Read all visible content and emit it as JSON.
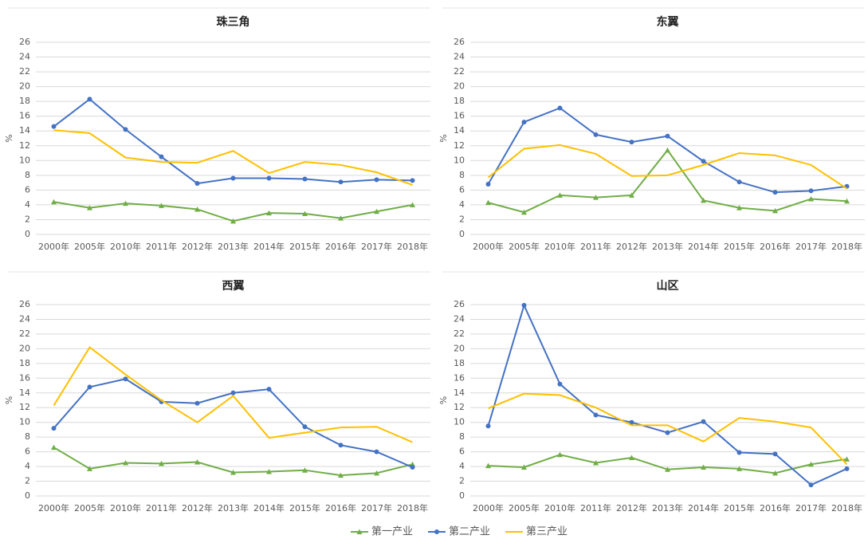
{
  "chart_data": [
    {
      "type": "line",
      "title": "珠三角",
      "ylabel": "%",
      "categories": [
        "2000年",
        "2005年",
        "2010年",
        "2011年",
        "2012年",
        "2013年",
        "2014年",
        "2015年",
        "2016年",
        "2017年",
        "2018年"
      ],
      "ylim": [
        0,
        26
      ],
      "yticks": [
        0,
        2,
        4,
        6,
        8,
        10,
        12,
        14,
        16,
        18,
        20,
        22,
        24,
        26
      ],
      "grid": true,
      "series": [
        {
          "name": "第一产业",
          "color": "#70ad47",
          "marker": "triangle",
          "values": [
            4.4,
            3.6,
            4.2,
            3.9,
            3.4,
            1.8,
            2.9,
            2.8,
            2.2,
            3.1,
            4.0
          ]
        },
        {
          "name": "第二产业",
          "color": "#4472c4",
          "marker": "circle",
          "values": [
            14.6,
            18.3,
            14.2,
            10.5,
            6.9,
            7.6,
            7.6,
            7.5,
            7.1,
            7.4,
            7.3
          ]
        },
        {
          "name": "第三产业",
          "color": "#ffc000",
          "marker": "none",
          "values": [
            14.1,
            13.7,
            10.4,
            9.8,
            9.7,
            11.3,
            8.3,
            9.8,
            9.4,
            8.4,
            6.7
          ]
        }
      ]
    },
    {
      "type": "line",
      "title": "东翼",
      "ylabel": "%",
      "categories": [
        "2000年",
        "2005年",
        "2010年",
        "2011年",
        "2012年",
        "2013年",
        "2014年",
        "2015年",
        "2016年",
        "2017年",
        "2018年"
      ],
      "ylim": [
        0,
        26
      ],
      "yticks": [
        0,
        2,
        4,
        6,
        8,
        10,
        12,
        14,
        16,
        18,
        20,
        22,
        24,
        26
      ],
      "grid": true,
      "series": [
        {
          "name": "第一产业",
          "color": "#70ad47",
          "marker": "triangle",
          "values": [
            4.3,
            3.0,
            5.3,
            5.0,
            5.3,
            11.4,
            4.6,
            3.6,
            3.2,
            4.8,
            4.5
          ]
        },
        {
          "name": "第二产业",
          "color": "#4472c4",
          "marker": "circle",
          "values": [
            6.8,
            15.2,
            17.1,
            13.5,
            12.5,
            13.3,
            9.9,
            7.1,
            5.7,
            5.9,
            6.5
          ]
        },
        {
          "name": "第三产业",
          "color": "#ffc000",
          "marker": "none",
          "values": [
            7.7,
            11.6,
            12.1,
            10.9,
            7.9,
            8.0,
            9.4,
            11.0,
            10.7,
            9.4,
            6.2
          ]
        }
      ]
    },
    {
      "type": "line",
      "title": "西翼",
      "ylabel": "%",
      "categories": [
        "2000年",
        "2005年",
        "2010年",
        "2011年",
        "2012年",
        "2013年",
        "2014年",
        "2015年",
        "2016年",
        "2017年",
        "2018年"
      ],
      "ylim": [
        0,
        26
      ],
      "yticks": [
        0,
        2,
        4,
        6,
        8,
        10,
        12,
        14,
        16,
        18,
        20,
        22,
        24,
        26
      ],
      "grid": true,
      "series": [
        {
          "name": "第一产业",
          "color": "#70ad47",
          "marker": "triangle",
          "values": [
            6.6,
            3.7,
            4.5,
            4.4,
            4.6,
            3.2,
            3.3,
            3.5,
            2.8,
            3.1,
            4.3
          ]
        },
        {
          "name": "第二产业",
          "color": "#4472c4",
          "marker": "circle",
          "values": [
            9.2,
            14.8,
            15.9,
            12.8,
            12.6,
            14.0,
            14.5,
            9.4,
            6.9,
            6.0,
            3.9
          ]
        },
        {
          "name": "第三产业",
          "color": "#ffc000",
          "marker": "none",
          "values": [
            12.3,
            20.2,
            16.5,
            13.0,
            10.0,
            13.6,
            7.9,
            8.6,
            9.3,
            9.4,
            7.3
          ]
        }
      ]
    },
    {
      "type": "line",
      "title": "山区",
      "ylabel": "%",
      "categories": [
        "2000年",
        "2005年",
        "2010年",
        "2011年",
        "2012年",
        "2013年",
        "2014年",
        "2015年",
        "2016年",
        "2017年",
        "2018年"
      ],
      "ylim": [
        0,
        26
      ],
      "yticks": [
        0,
        2,
        4,
        6,
        8,
        10,
        12,
        14,
        16,
        18,
        20,
        22,
        24,
        26
      ],
      "grid": true,
      "series": [
        {
          "name": "第一产业",
          "color": "#70ad47",
          "marker": "triangle",
          "values": [
            4.1,
            3.9,
            5.6,
            4.5,
            5.2,
            3.6,
            3.9,
            3.7,
            3.1,
            4.3,
            5.0
          ]
        },
        {
          "name": "第二产业",
          "color": "#4472c4",
          "marker": "circle",
          "values": [
            9.5,
            25.9,
            15.2,
            11.0,
            10.0,
            8.6,
            10.1,
            5.9,
            5.7,
            1.5,
            3.7
          ]
        },
        {
          "name": "第三产业",
          "color": "#ffc000",
          "marker": "none",
          "values": [
            11.9,
            13.9,
            13.7,
            12.0,
            9.6,
            9.6,
            7.4,
            10.6,
            10.1,
            9.3,
            4.3
          ]
        }
      ]
    }
  ]
}
